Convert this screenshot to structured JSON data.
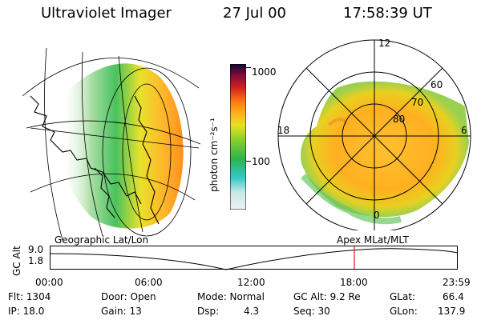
{
  "header": {
    "instrument": "Ultraviolet Imager",
    "date": "27 Jul 00",
    "time": "17:58:39 UT"
  },
  "colorbar": {
    "label": "photon cm⁻²s⁻¹",
    "ticks": [
      "1000",
      "100"
    ]
  },
  "polar_plot": {
    "mlt_labels": [
      "12",
      "18",
      "6",
      "0"
    ],
    "lat_labels": [
      "60",
      "70",
      "80"
    ]
  },
  "panel_labels": {
    "left": "Geographic Lat/Lon",
    "right": "Apex MLat/MLT"
  },
  "timeline": {
    "ylabel": "GC Alt",
    "yticks": [
      "9.0",
      "1.8"
    ],
    "xticks": [
      "00:00",
      "06:00",
      "12:00",
      "18:00",
      "23:59"
    ],
    "current_time_marker": "17:58"
  },
  "footer": {
    "flt": "Flt: 1304",
    "ip": "IP: 18.0",
    "door": "Door: Open",
    "gain": "Gain: 13",
    "mode": "Mode: Normal",
    "dsp": "Dsp:",
    "dsp_value": "4.3",
    "gc_alt": "GC Alt: 9.2 Re",
    "seq": "Seq: 30",
    "glat": "GLat:",
    "glat_value": "66.4",
    "glon": "GLon:",
    "glon_value": "137.9"
  },
  "colors": {
    "marker": "#d81b1b",
    "colormap": [
      "#f0f0f0",
      "#c8e8e8",
      "#33c8c8",
      "#2db34a",
      "#8ad02a",
      "#e8e020",
      "#ffb020",
      "#ff7a10",
      "#d02020",
      "#7a0a3a",
      "#0a0a30"
    ]
  }
}
